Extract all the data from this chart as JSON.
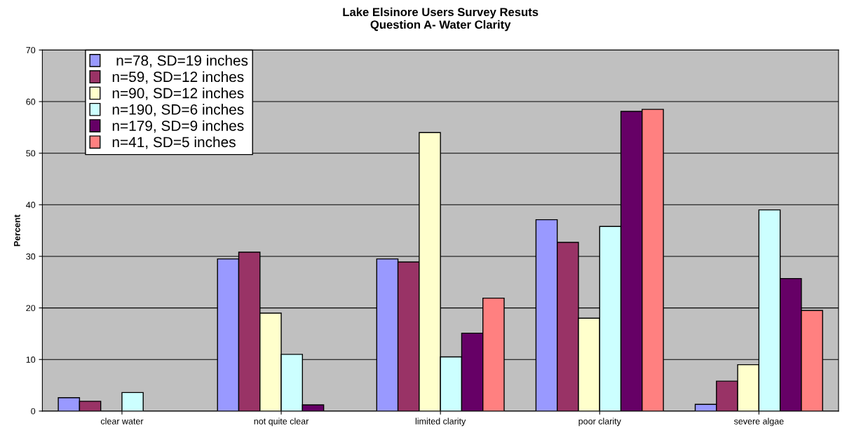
{
  "chart_data": {
    "type": "bar",
    "title": "Lake Elsinore Users Survey Resuts\nQuestion A- Water Clarity",
    "ylabel": "Percent",
    "categories": [
      "clear water",
      "not quite clear",
      "limited clarity",
      "poor clarity",
      "severe algae"
    ],
    "series": [
      {
        "name": " n=78, SD=19 inches",
        "color": "#9999ff",
        "values": [
          2.6,
          29.5,
          29.5,
          37.1,
          1.3
        ]
      },
      {
        "name": "n=59, SD=12 inches",
        "color": "#993366",
        "values": [
          1.9,
          30.8,
          28.9,
          32.7,
          5.8
        ]
      },
      {
        "name": "n=90, SD=12 inches",
        "color": "#ffffcc",
        "values": [
          0,
          19,
          54,
          18,
          9
        ]
      },
      {
        "name": "n=190, SD=6 inches",
        "color": "#ccffff",
        "values": [
          3.6,
          11,
          10.5,
          35.8,
          39
        ]
      },
      {
        "name": "n=179, SD=9 inches",
        "color": "#660066",
        "values": [
          0,
          1.2,
          15.1,
          58.1,
          25.7
        ]
      },
      {
        "name": "n=41, SD=5 inches",
        "color": "#ff8080",
        "values": [
          0,
          0,
          21.9,
          58.5,
          19.5
        ]
      }
    ],
    "ylim": [
      0,
      70
    ],
    "yticks": [
      0,
      10,
      20,
      30,
      40,
      50,
      60,
      70
    ],
    "grid": "y",
    "legend": "top left"
  }
}
